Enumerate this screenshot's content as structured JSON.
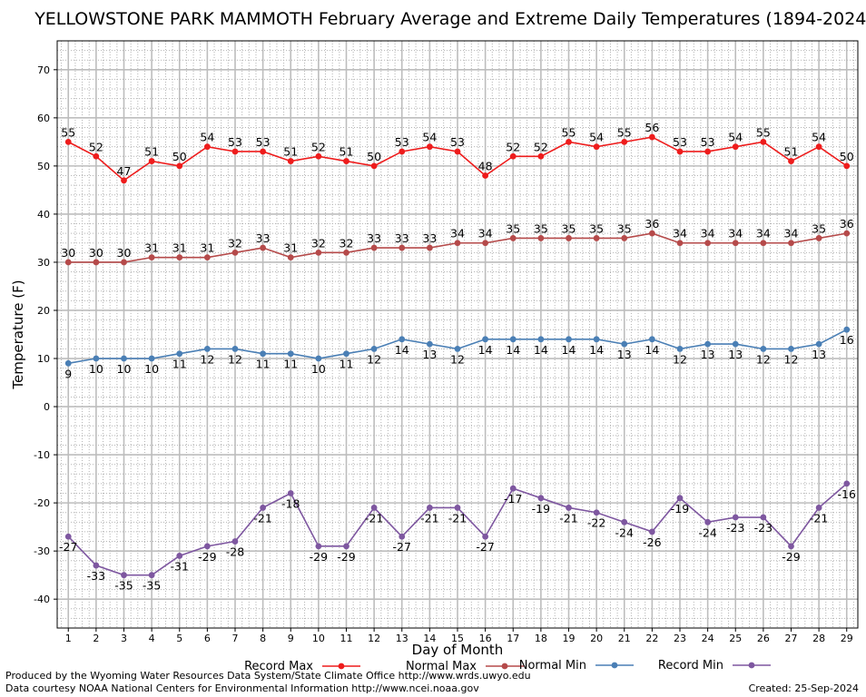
{
  "chart_data": {
    "type": "line",
    "title": "YELLOWSTONE PARK MAMMOTH February Average and Extreme Daily Temperatures (1894-2024)",
    "xlabel": "Day of Month",
    "ylabel": "Temperature (F)",
    "x": [
      1,
      2,
      3,
      4,
      5,
      6,
      7,
      8,
      9,
      10,
      11,
      12,
      13,
      14,
      15,
      16,
      17,
      18,
      19,
      20,
      21,
      22,
      23,
      24,
      25,
      26,
      27,
      28,
      29
    ],
    "xlim": [
      0.6,
      29.4
    ],
    "ylim": [
      -46,
      76
    ],
    "yticks": [
      -40,
      -30,
      -20,
      -10,
      0,
      10,
      20,
      30,
      40,
      50,
      60,
      70
    ],
    "grid": true,
    "legend_position": "bottom",
    "series": [
      {
        "name": "Record Max",
        "color": "#ee1c1c",
        "label_pos": "above",
        "values": [
          55,
          52,
          47,
          51,
          50,
          54,
          53,
          53,
          51,
          52,
          51,
          50,
          53,
          54,
          53,
          48,
          52,
          52,
          55,
          54,
          55,
          56,
          53,
          53,
          54,
          55,
          51,
          54,
          50
        ]
      },
      {
        "name": "Normal Max",
        "color": "#b54a4a",
        "label_pos": "above",
        "values": [
          30,
          30,
          30,
          31,
          31,
          31,
          32,
          33,
          31,
          32,
          32,
          33,
          33,
          33,
          34,
          34,
          35,
          35,
          35,
          35,
          35,
          36,
          34,
          34,
          34,
          34,
          34,
          35,
          36
        ]
      },
      {
        "name": "Normal Min",
        "color": "#4a7fb5",
        "label_pos": "below",
        "values": [
          9,
          10,
          10,
          10,
          11,
          12,
          12,
          11,
          11,
          10,
          11,
          12,
          14,
          13,
          12,
          14,
          14,
          14,
          14,
          14,
          13,
          14,
          12,
          13,
          13,
          12,
          12,
          13,
          16
        ]
      },
      {
        "name": "Record Min",
        "color": "#7e57a0",
        "label_pos": "below",
        "values": [
          -27,
          -33,
          -35,
          -35,
          -31,
          -29,
          -28,
          -21,
          -18,
          -29,
          -29,
          -21,
          -27,
          -21,
          -21,
          -27,
          -17,
          -19,
          -21,
          -22,
          -24,
          -26,
          -19,
          -24,
          -23,
          -23,
          -29,
          -21,
          -16
        ]
      }
    ]
  },
  "footer": {
    "line1": "Produced by the Wyoming Water Resources Data System/State Climate Office http://www.wrds.uwyo.edu",
    "line2": "Data courtesy NOAA National Centers for Environmental Information http://www.ncei.noaa.gov",
    "created": "Created:  25-Sep-2024"
  }
}
